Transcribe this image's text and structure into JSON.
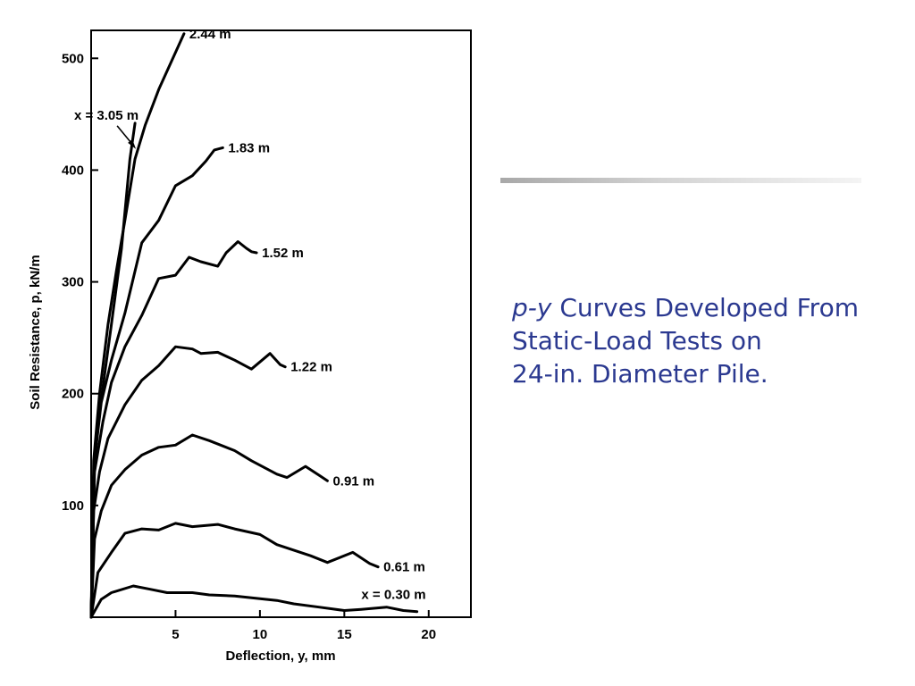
{
  "caption": {
    "italic_prefix": "p-y",
    "line1_rest": " Curves Developed From",
    "line2": "Static-Load Tests on",
    "line3": "24-in. Diameter Pile."
  },
  "colors": {
    "caption": "#2b3990",
    "curves": "#000000"
  },
  "chart_data": {
    "type": "line",
    "title": "",
    "xlabel": "Deflection, y, mm",
    "ylabel": "Soil Resistance, p, kN/m",
    "xlim": [
      0,
      22.5
    ],
    "ylim": [
      0,
      525
    ],
    "xticks": [
      5,
      10,
      15,
      20
    ],
    "yticks": [
      100,
      200,
      300,
      400,
      500
    ],
    "grid": false,
    "series": [
      {
        "name": "x = 0.30 m",
        "points": [
          [
            0,
            0
          ],
          [
            0.6,
            16
          ],
          [
            1.2,
            22
          ],
          [
            2.5,
            28
          ],
          [
            3.5,
            25
          ],
          [
            4.5,
            22
          ],
          [
            6,
            22
          ],
          [
            7,
            20
          ],
          [
            8.5,
            19
          ],
          [
            11,
            15
          ],
          [
            12,
            12
          ],
          [
            13.5,
            9
          ],
          [
            15,
            6
          ],
          [
            16,
            7
          ],
          [
            17.5,
            9
          ],
          [
            18.5,
            6
          ],
          [
            19.3,
            5
          ]
        ]
      },
      {
        "name": "0.61 m",
        "points": [
          [
            0,
            0
          ],
          [
            0.4,
            40
          ],
          [
            1.2,
            58
          ],
          [
            2,
            75
          ],
          [
            3,
            79
          ],
          [
            4,
            78
          ],
          [
            5,
            84
          ],
          [
            6,
            81
          ],
          [
            7.5,
            83
          ],
          [
            8.5,
            79
          ],
          [
            10,
            74
          ],
          [
            11,
            65
          ],
          [
            12,
            60
          ],
          [
            13,
            55
          ],
          [
            14,
            49
          ],
          [
            15.5,
            58
          ],
          [
            16.5,
            48
          ],
          [
            17,
            45
          ]
        ]
      },
      {
        "name": "0.91 m",
        "points": [
          [
            0,
            0
          ],
          [
            0.2,
            70
          ],
          [
            0.6,
            95
          ],
          [
            1.2,
            118
          ],
          [
            2,
            132
          ],
          [
            3,
            145
          ],
          [
            4,
            152
          ],
          [
            5,
            154
          ],
          [
            6,
            163
          ],
          [
            7,
            158
          ],
          [
            8.5,
            149
          ],
          [
            9.5,
            140
          ],
          [
            11,
            128
          ],
          [
            11.6,
            125
          ],
          [
            12.7,
            135
          ],
          [
            13.6,
            126
          ],
          [
            14,
            122
          ]
        ]
      },
      {
        "name": "1.22 m",
        "points": [
          [
            0,
            0
          ],
          [
            0.15,
            95
          ],
          [
            0.5,
            130
          ],
          [
            1,
            160
          ],
          [
            2,
            190
          ],
          [
            3,
            212
          ],
          [
            4,
            225
          ],
          [
            5,
            242
          ],
          [
            6,
            240
          ],
          [
            6.5,
            236
          ],
          [
            7.5,
            237
          ],
          [
            8.5,
            230
          ],
          [
            9.5,
            222
          ],
          [
            10.6,
            236
          ],
          [
            11.2,
            226
          ],
          [
            11.5,
            224
          ]
        ]
      },
      {
        "name": "1.52 m",
        "points": [
          [
            0,
            0
          ],
          [
            0.2,
            130
          ],
          [
            0.7,
            175
          ],
          [
            1.2,
            210
          ],
          [
            2,
            242
          ],
          [
            3,
            270
          ],
          [
            4,
            303
          ],
          [
            5,
            306
          ],
          [
            5.8,
            322
          ],
          [
            6.5,
            318
          ],
          [
            7.5,
            314
          ],
          [
            8,
            326
          ],
          [
            8.7,
            336
          ],
          [
            9.2,
            330
          ],
          [
            9.5,
            327
          ],
          [
            9.8,
            326
          ]
        ]
      },
      {
        "name": "1.83 m",
        "points": [
          [
            0,
            0
          ],
          [
            0.2,
            140
          ],
          [
            0.6,
            192
          ],
          [
            1.2,
            230
          ],
          [
            2,
            272
          ],
          [
            3,
            335
          ],
          [
            4,
            355
          ],
          [
            5,
            386
          ],
          [
            6,
            395
          ],
          [
            6.8,
            408
          ],
          [
            7.3,
            418
          ],
          [
            7.8,
            420
          ]
        ]
      },
      {
        "name": "x = 3.05 m",
        "points": [
          [
            0,
            0
          ],
          [
            0.2,
            145
          ],
          [
            0.6,
            195
          ],
          [
            1.2,
            262
          ],
          [
            1.8,
            330
          ],
          [
            2.3,
            410
          ],
          [
            2.6,
            442
          ]
        ]
      },
      {
        "name": "2.44 m",
        "points": [
          [
            0,
            0
          ],
          [
            0.15,
            140
          ],
          [
            0.5,
            200
          ],
          [
            1,
            262
          ],
          [
            1.5,
            310
          ],
          [
            2,
            355
          ],
          [
            2.6,
            410
          ],
          [
            3.2,
            440
          ],
          [
            4,
            472
          ],
          [
            5.5,
            522
          ]
        ]
      }
    ]
  }
}
